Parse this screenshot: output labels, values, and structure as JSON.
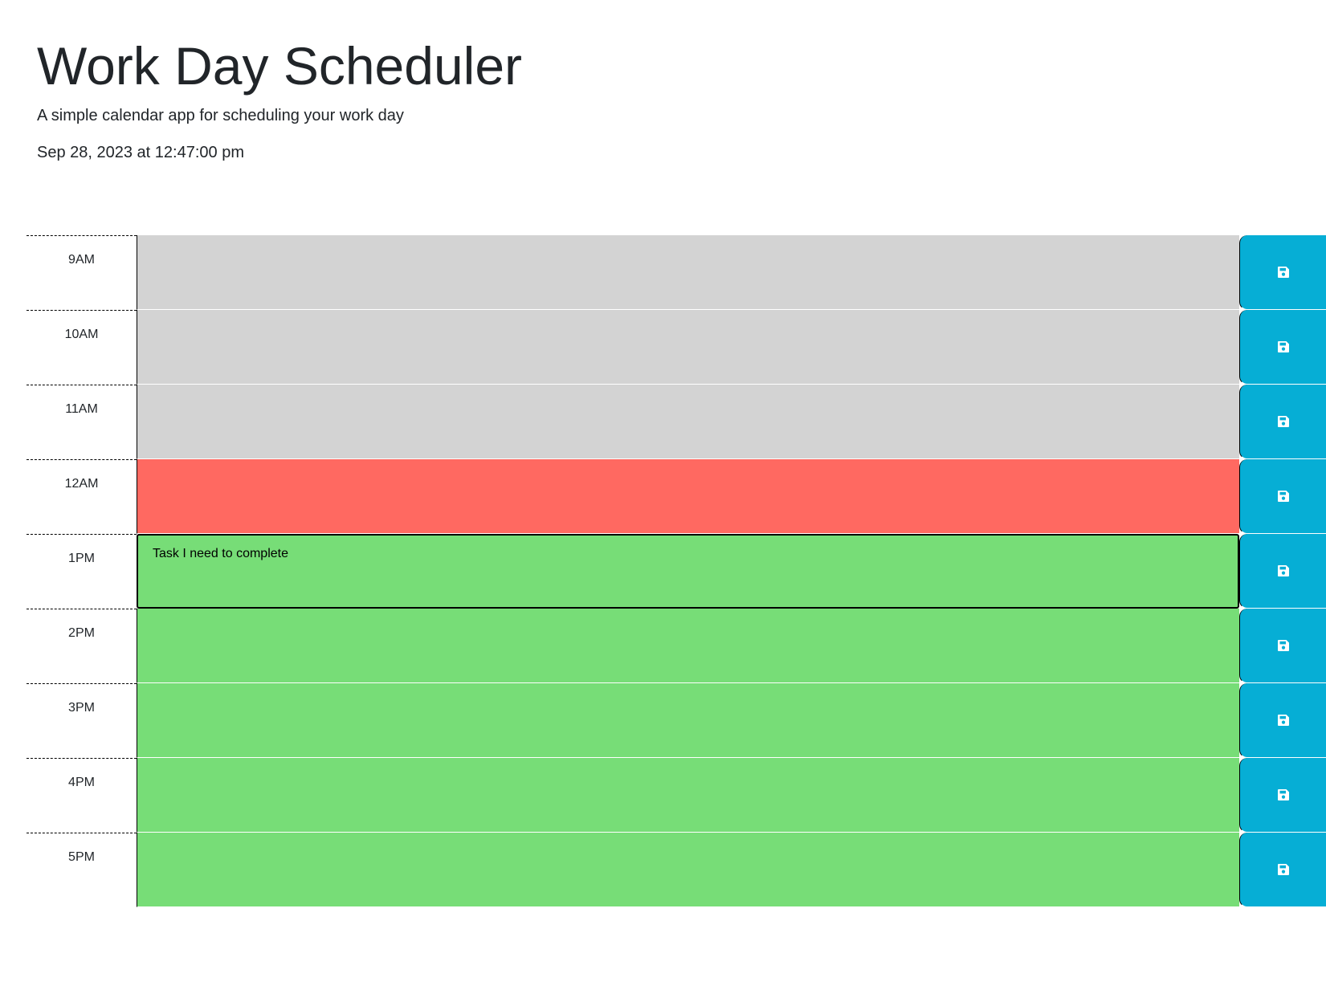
{
  "header": {
    "title": "Work Day Scheduler",
    "subtitle": "A simple calendar app for scheduling your work day",
    "current_datetime": "Sep 28, 2023 at 12:47:00 pm"
  },
  "colors": {
    "past": "#d3d3d3",
    "present": "#ff6961",
    "future": "#77dd77",
    "save_button": "#06aed5"
  },
  "save_icon": "floppy-disk-icon",
  "schedule": [
    {
      "hour": "9AM",
      "state": "past",
      "task": ""
    },
    {
      "hour": "10AM",
      "state": "past",
      "task": ""
    },
    {
      "hour": "11AM",
      "state": "past",
      "task": ""
    },
    {
      "hour": "12AM",
      "state": "present",
      "task": ""
    },
    {
      "hour": "1PM",
      "state": "future",
      "task": "Task I need to complete",
      "focused": true
    },
    {
      "hour": "2PM",
      "state": "future",
      "task": ""
    },
    {
      "hour": "3PM",
      "state": "future",
      "task": ""
    },
    {
      "hour": "4PM",
      "state": "future",
      "task": ""
    },
    {
      "hour": "5PM",
      "state": "future",
      "task": ""
    }
  ]
}
